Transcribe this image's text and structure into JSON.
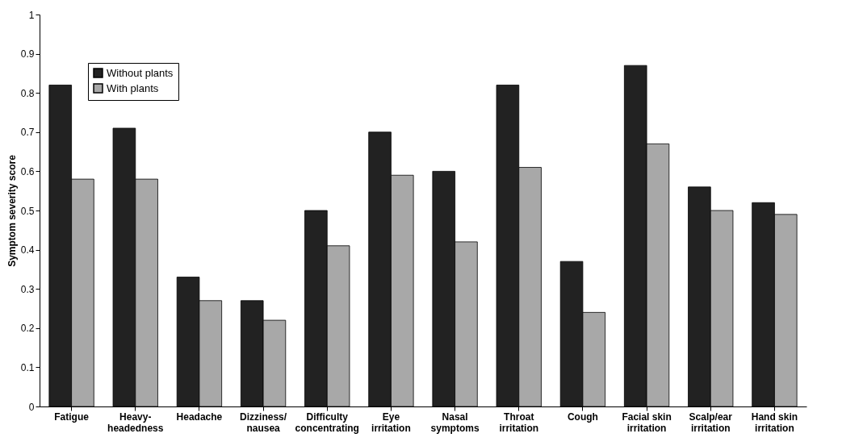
{
  "chart_data": {
    "type": "bar",
    "ylabel": "Symptom severity score",
    "categories": [
      "Fatigue",
      "Heavy-\nheadedness",
      "Headache",
      "Dizziness/\nnausea",
      "Difficulty\nconcentrating",
      "Eye\nirritation",
      "Nasal\nsymptoms",
      "Throat\nirritation",
      "Cough",
      "Facial skin\nirritation",
      "Scalp/ear\nirritation",
      "Hand skin\nirritation"
    ],
    "series": [
      {
        "name": "Without plants",
        "color": "#222222",
        "values": [
          0.82,
          0.71,
          0.33,
          0.27,
          0.5,
          0.7,
          0.6,
          0.82,
          0.37,
          0.87,
          0.56,
          0.52
        ]
      },
      {
        "name": "With plants",
        "color": "#a8a8a8",
        "values": [
          0.58,
          0.58,
          0.27,
          0.22,
          0.41,
          0.59,
          0.42,
          0.61,
          0.24,
          0.67,
          0.5,
          0.49
        ]
      }
    ],
    "ylim": [
      0,
      1
    ],
    "yticks": [
      0,
      0.1,
      0.2,
      0.3,
      0.4,
      0.5,
      0.6,
      0.7,
      0.8,
      0.9,
      1
    ],
    "grid": false,
    "legend": "top left"
  }
}
